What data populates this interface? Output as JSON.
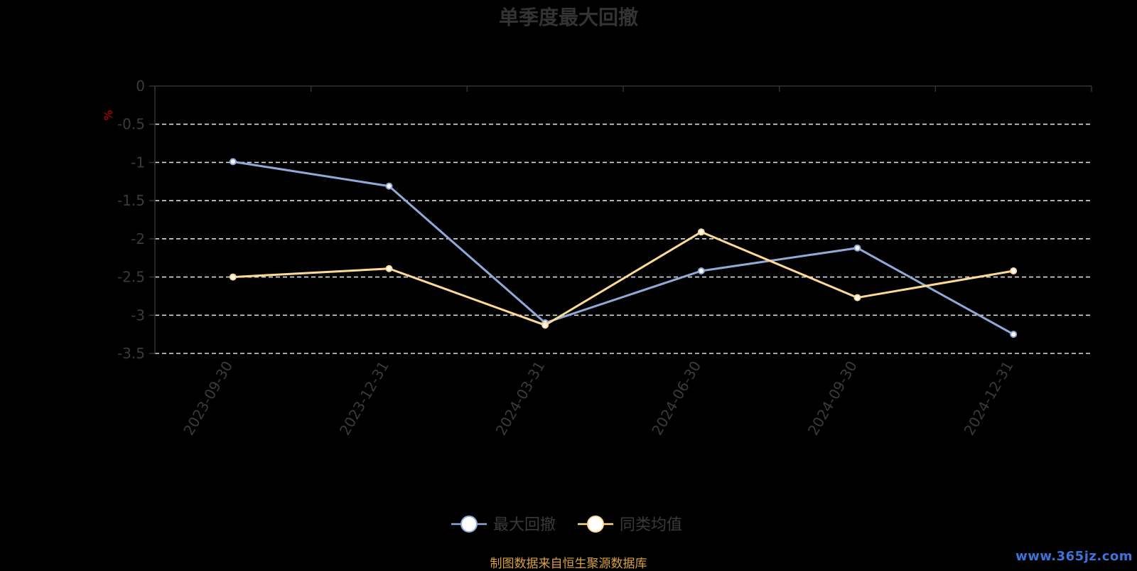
{
  "chart_data": {
    "type": "line",
    "title": "单季度最大回撤",
    "ylabel": "%",
    "categories": [
      "2023-09-30",
      "2023-12-31",
      "2024-03-31",
      "2024-06-30",
      "2024-09-30",
      "2024-12-31"
    ],
    "series": [
      {
        "name": "最大回撤",
        "values": [
          -0.99,
          -1.31,
          -3.1,
          -2.42,
          -2.12,
          -3.25
        ],
        "color": "#8fa9d9"
      },
      {
        "name": "同类均值",
        "values": [
          -2.5,
          -2.39,
          -3.13,
          -1.91,
          -2.77,
          -2.42
        ],
        "color": "#fcd995"
      }
    ],
    "ylim": [
      -3.5,
      0
    ],
    "yticks": [
      0,
      -0.5,
      -1,
      -1.5,
      -2,
      -2.5,
      -3,
      -3.5
    ],
    "ytick_labels": [
      "0",
      "-0.5",
      "-1",
      "-1.5",
      "-2",
      "-2.5",
      "-3",
      "-3.5"
    ],
    "grid": true,
    "legend": "bottom-center"
  },
  "source_text": "制图数据来自恒生聚源数据库",
  "watermark": "www.365jz.com"
}
